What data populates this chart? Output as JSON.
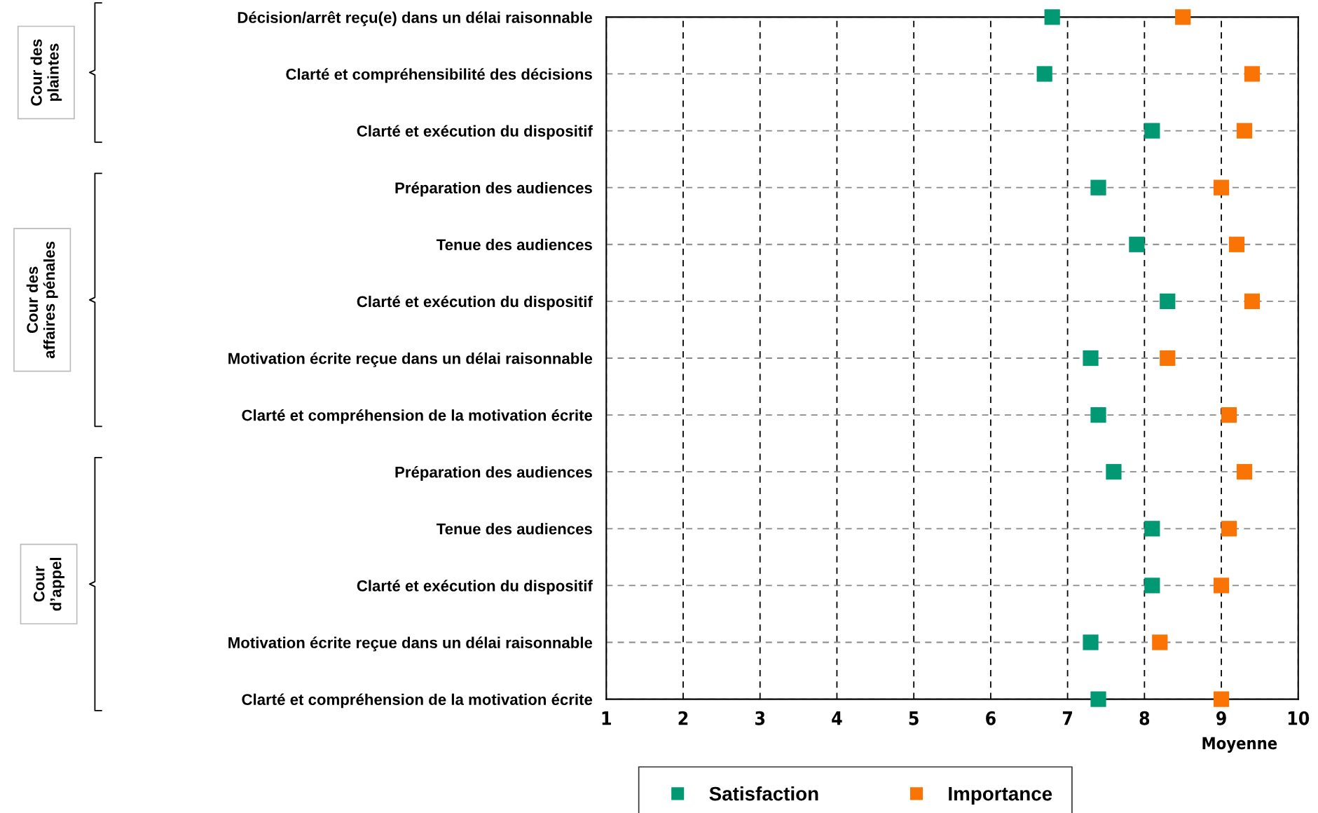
{
  "chart_data": {
    "type": "scatter",
    "orientation": "horizontal",
    "xlabel": "Moyenne",
    "categories": [
      "Décision/arrêt reçu(e) dans un délai raisonnable",
      "Clarté et compréhensibilité des décisions",
      "Clarté et exécution du dispositif",
      "Préparation des audiences",
      "Tenue des audiences",
      "Clarté et exécution du dispositif",
      "Motivation écrite reçue dans un délai raisonnable",
      "Clarté et compréhension de la motivation écrite",
      "Préparation des audiences",
      "Tenue des audiences",
      "Clarté et exécution du dispositif",
      "Motivation écrite reçue dans un délai raisonnable",
      "Clarté et compréhension de la motivation écrite"
    ],
    "series": [
      {
        "name": "Satisfaction",
        "color": "#009973",
        "values": [
          6.8,
          6.7,
          8.1,
          7.4,
          7.9,
          8.3,
          7.3,
          7.4,
          7.6,
          8.1,
          8.1,
          7.3,
          7.4
        ]
      },
      {
        "name": "Importance",
        "color": "#fa7305",
        "values": [
          8.5,
          9.4,
          9.3,
          9.0,
          9.2,
          9.4,
          8.3,
          9.1,
          9.3,
          9.1,
          9.0,
          8.2,
          9.0
        ]
      }
    ],
    "xlim": [
      1,
      10
    ],
    "xticks": [
      1,
      2,
      3,
      4,
      5,
      6,
      7,
      8,
      9,
      10
    ],
    "grid": true,
    "legend": "bottom",
    "marker": "square",
    "annotations": [
      "Cour des\nplaintes",
      "Cour des\naffaires pénales",
      "Cour\nd’appel"
    ]
  }
}
